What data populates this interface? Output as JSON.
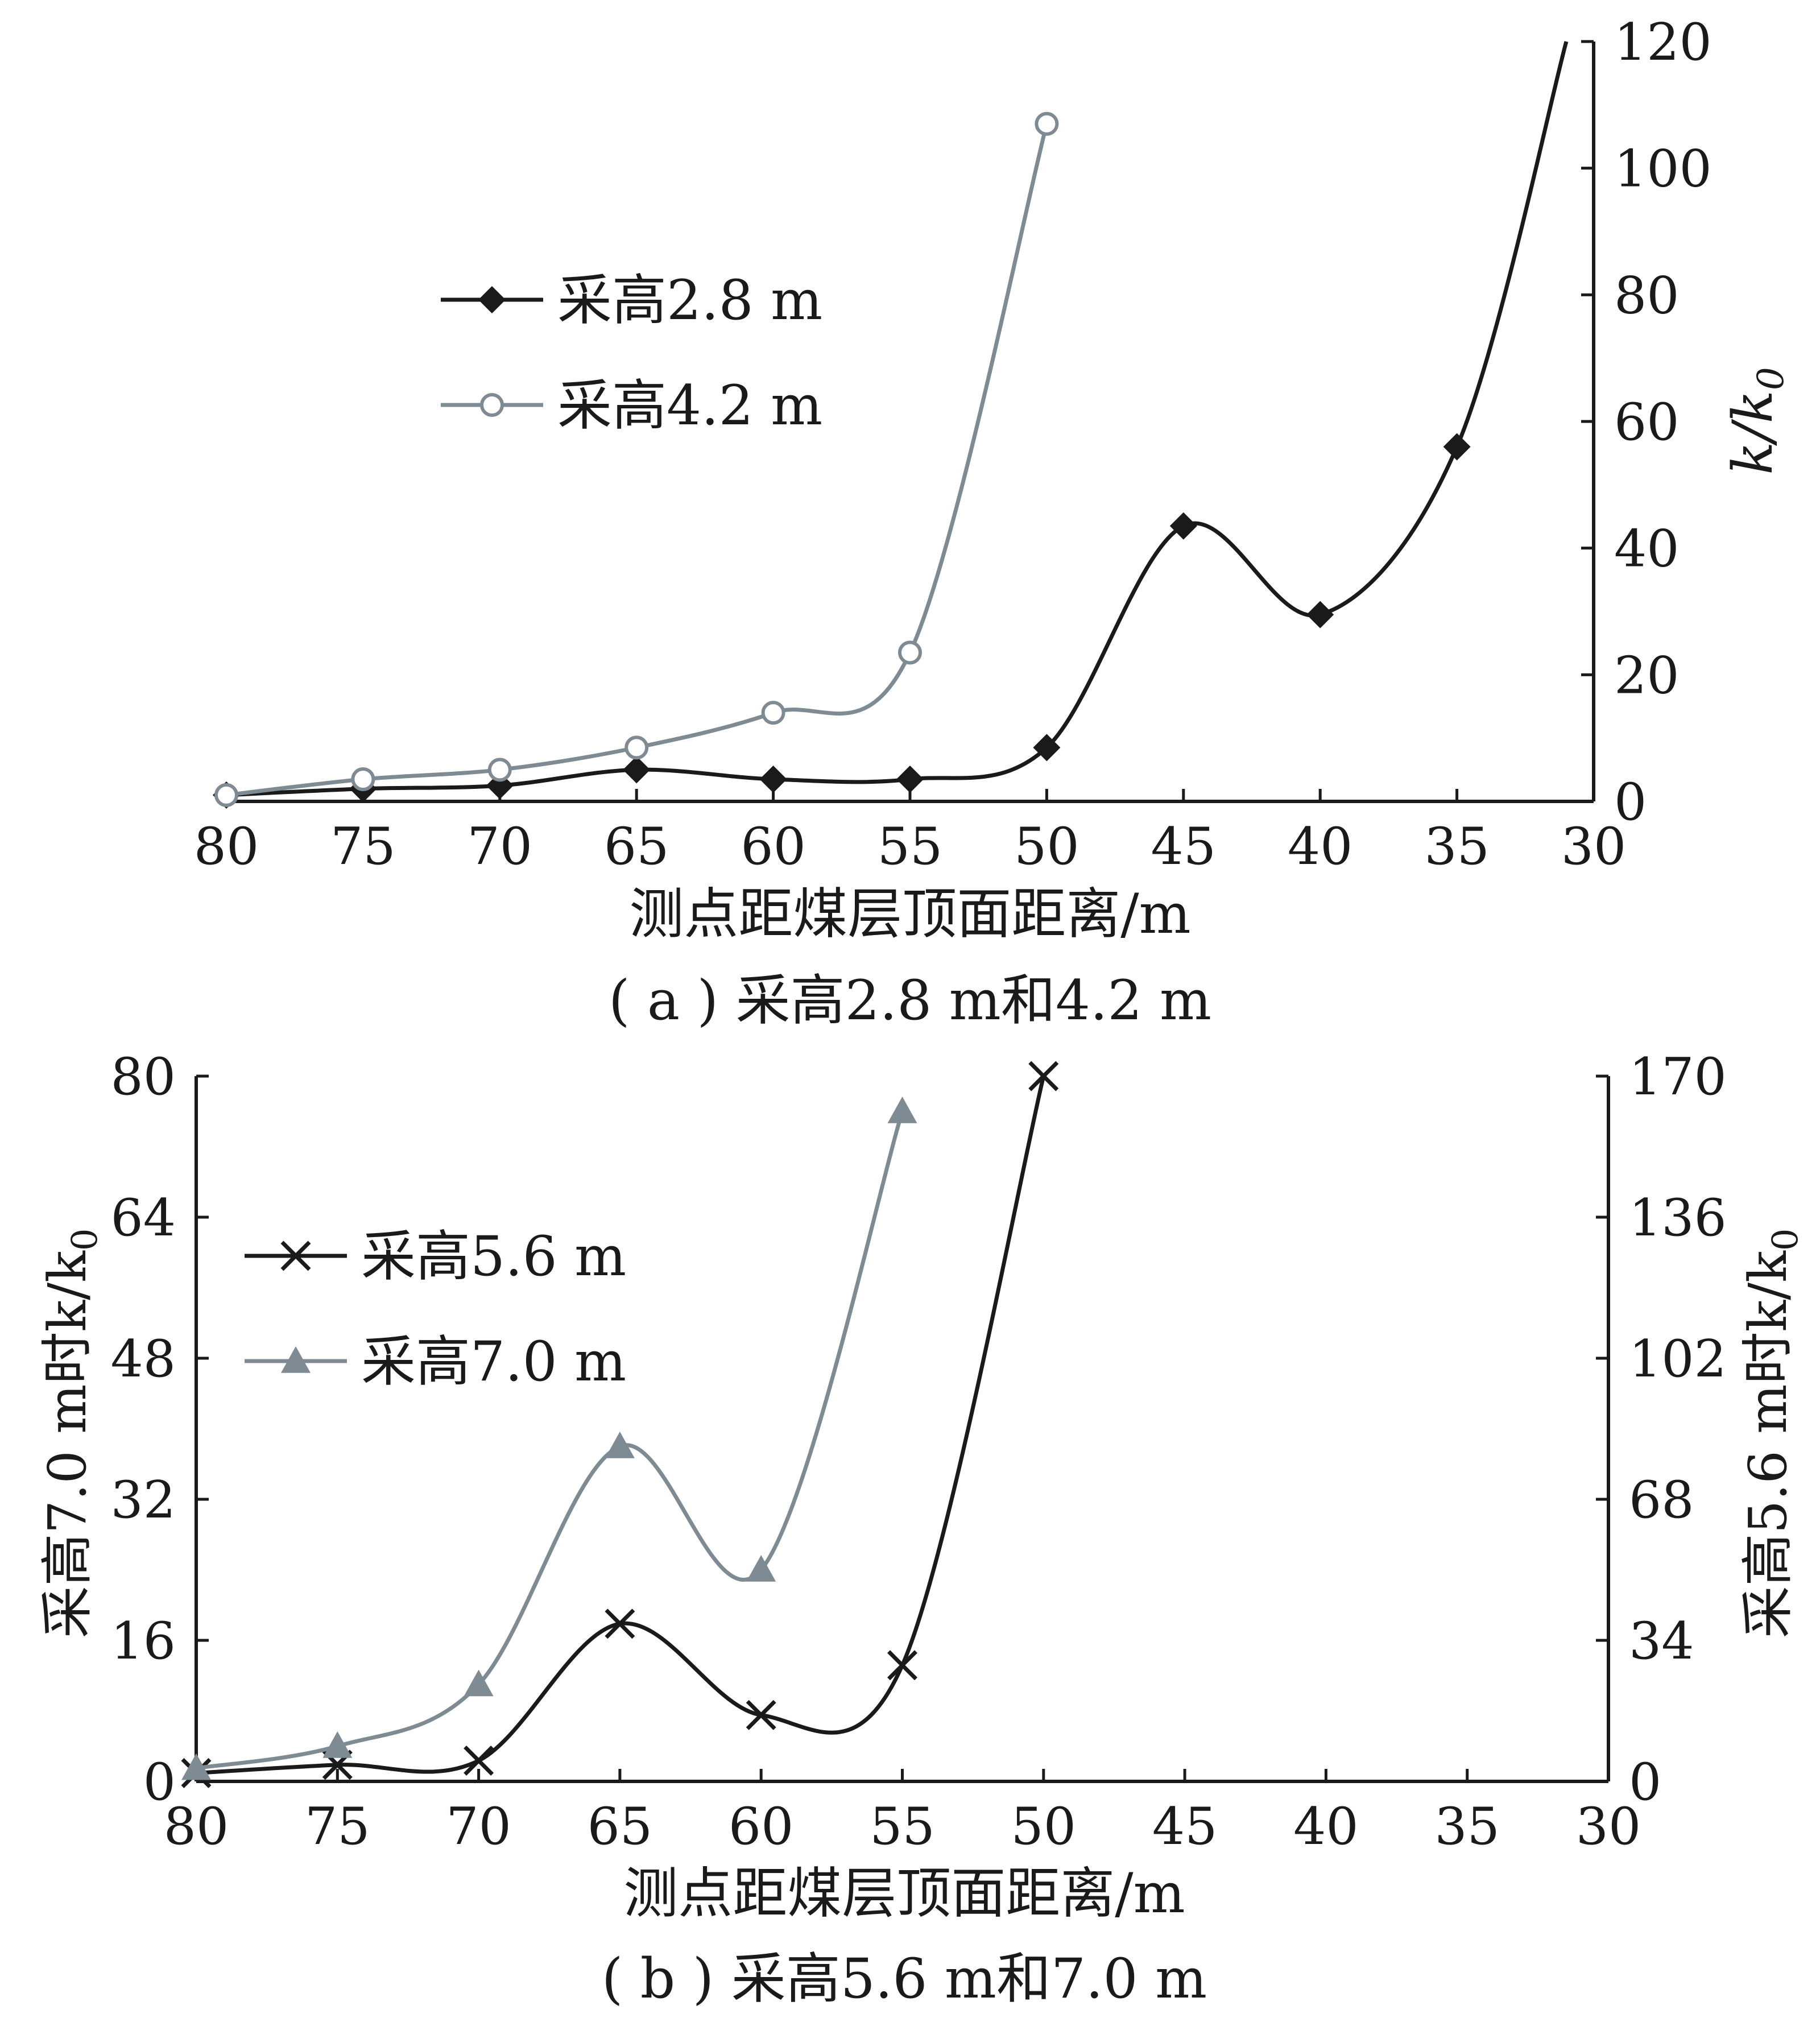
{
  "chart_data": [
    {
      "type": "line",
      "x": [
        80,
        75,
        70,
        65,
        60,
        55,
        50,
        45,
        40,
        35
      ],
      "xlim": [
        80,
        30
      ],
      "xticks": [
        "80",
        "75",
        "70",
        "65",
        "60",
        "55",
        "50",
        "45",
        "40",
        "35",
        "30"
      ],
      "xlabel": "测点距煤层顶面距离/m",
      "right_axis": {
        "label": "k/k0",
        "label_main": "k/k",
        "label_sub": "0",
        "ylim": [
          0,
          120
        ],
        "ticks": [
          "0",
          "20",
          "40",
          "60",
          "80",
          "100",
          "120"
        ]
      },
      "caption": "( a )  采高2.8 m和4.2 m",
      "series": [
        {
          "name": "采高2.8 m",
          "axis": "right",
          "marker": "diamond",
          "color": "#1a1a1a",
          "x": [
            80,
            75,
            70,
            65,
            60,
            55,
            50,
            45,
            40,
            35,
            31
          ],
          "values": [
            1,
            2,
            2.5,
            5,
            3.5,
            3.5,
            8.5,
            43.5,
            29.5,
            56,
            120
          ]
        },
        {
          "name": "采高4.2 m",
          "axis": "right",
          "marker": "circle",
          "color": "#7f8b93",
          "x": [
            80,
            75,
            70,
            65,
            60,
            55,
            50
          ],
          "values": [
            1,
            3.5,
            5,
            8.5,
            14,
            23.5,
            107
          ]
        }
      ],
      "legend_position": "upper-left"
    },
    {
      "type": "line",
      "x": [
        80,
        75,
        70,
        65,
        60,
        55,
        50
      ],
      "xlim": [
        80,
        30
      ],
      "xticks": [
        "80",
        "75",
        "70",
        "65",
        "60",
        "55",
        "50",
        "45",
        "40",
        "35",
        "30"
      ],
      "xlabel": "测点距煤层顶面距离/m",
      "left_axis": {
        "label": "采高7.0 m时k/k0",
        "label_main": "采高7.0 m时k/k",
        "label_sub": "0",
        "ylim": [
          0,
          80
        ],
        "ticks": [
          "0",
          "16",
          "32",
          "48",
          "64",
          "80"
        ]
      },
      "right_axis": {
        "label": "采高5.6 m时k/k0",
        "label_main": "采高5.6 m时k/k",
        "label_sub": "0",
        "ylim": [
          0,
          170
        ],
        "ticks": [
          "0",
          "34",
          "68",
          "102",
          "136",
          "170"
        ]
      },
      "caption": "( b )  采高5.6 m和7.0 m",
      "series": [
        {
          "name": "采高5.6 m",
          "axis": "right",
          "marker": "x",
          "color": "#1a1a1a",
          "x": [
            80,
            75,
            70,
            65,
            60,
            55,
            50
          ],
          "values": [
            2,
            4,
            5,
            38,
            16,
            28,
            170
          ]
        },
        {
          "name": "采高7.0 m",
          "axis": "left",
          "marker": "triangle",
          "color": "#7f8b93",
          "x": [
            80,
            75,
            70,
            65,
            60,
            55
          ],
          "values": [
            1.5,
            4,
            11,
            38,
            24,
            76
          ]
        }
      ],
      "legend_position": "upper-left"
    }
  ]
}
